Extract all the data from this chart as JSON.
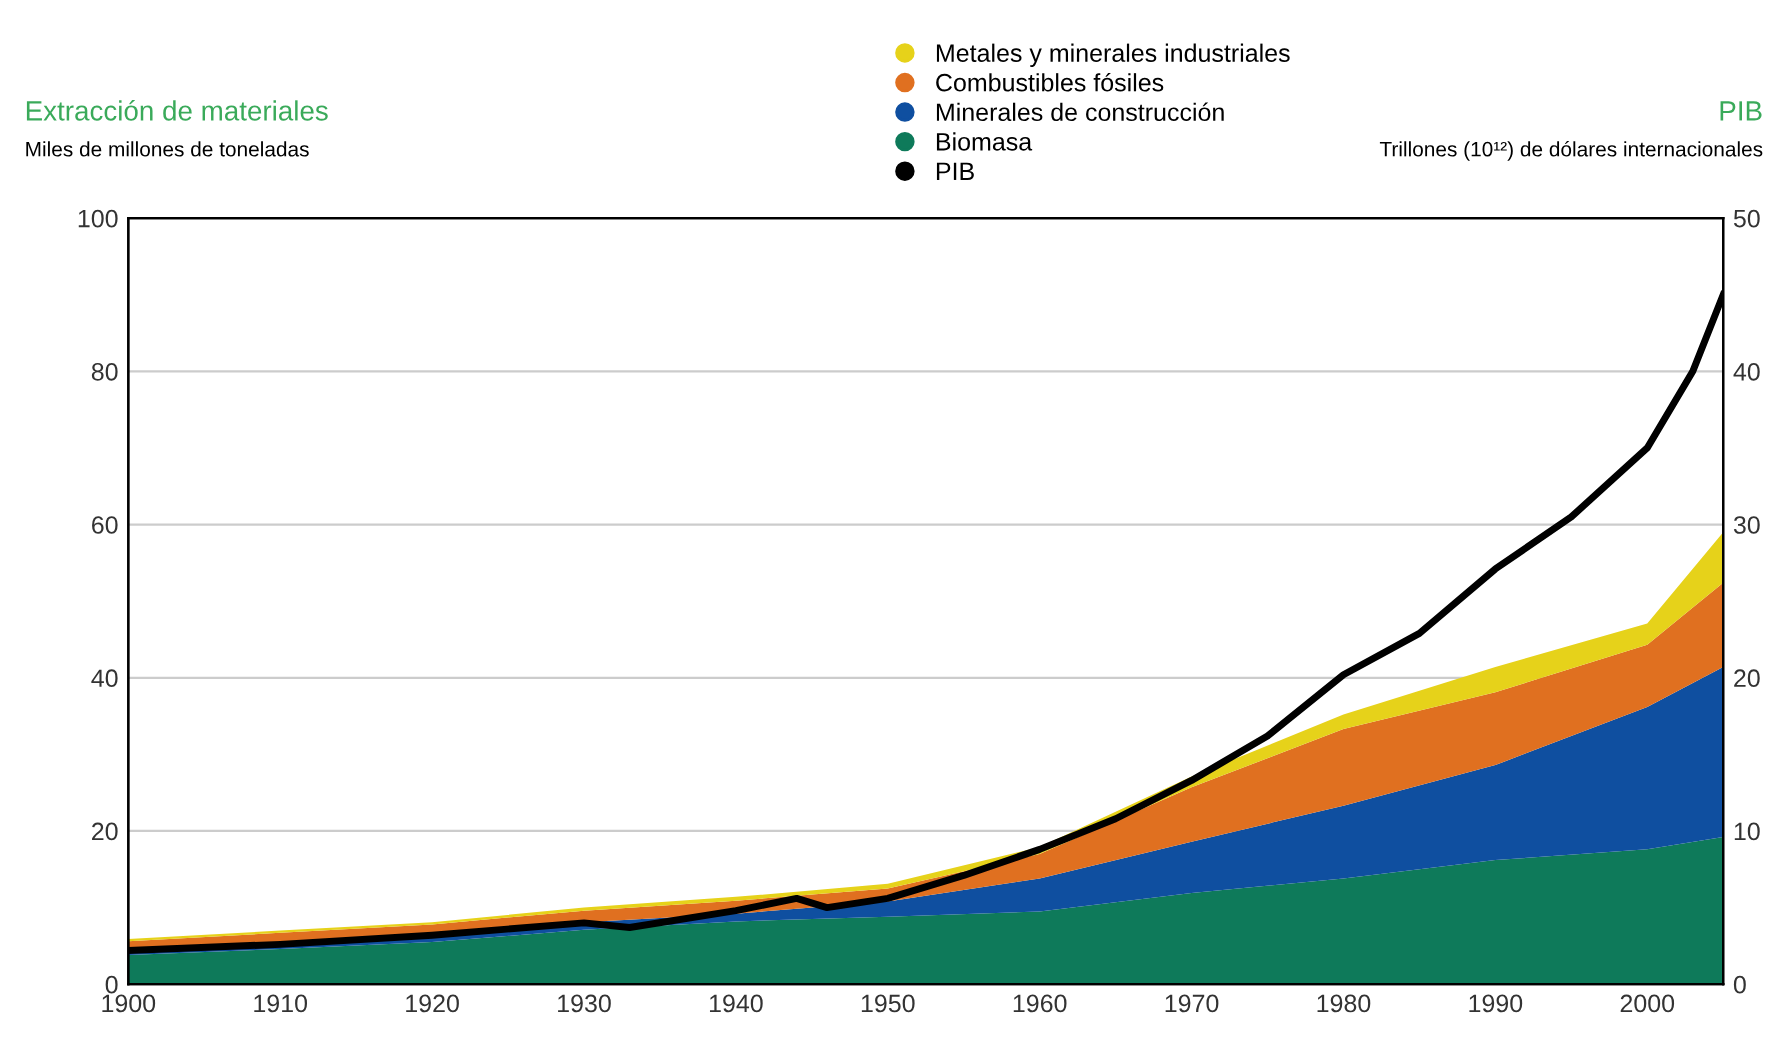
{
  "chart_data": {
    "type": "area",
    "stacked": true,
    "ylabel": "Extracción de materiales",
    "y2label": "PIB",
    "annotations": [
      "Miles de millones de toneladas",
      "Trillones (10¹²) de dólares internacionales"
    ],
    "x": [
      1900,
      1910,
      1920,
      1930,
      1940,
      1950,
      1960,
      1970,
      1980,
      1990,
      2000,
      2005
    ],
    "series": [
      {
        "name": "Biomasa",
        "color": "#0e7a5a",
        "values": [
          3.8,
          4.6,
          5.5,
          7.1,
          8.2,
          8.8,
          9.5,
          11.9,
          13.8,
          16.2,
          17.6,
          19.2
        ]
      },
      {
        "name": "Minerales de construcción",
        "color": "#0f4fa0",
        "values": [
          0.8,
          0.9,
          1.0,
          1.0,
          1.0,
          2.0,
          4.3,
          6.7,
          9.5,
          12.4,
          18.6,
          22.2
        ]
      },
      {
        "name": "Combustibles fósiles",
        "color": "#e07020",
        "values": [
          1.0,
          1.2,
          1.3,
          1.5,
          1.7,
          1.7,
          3.2,
          7.1,
          10.0,
          9.5,
          8.1,
          11.0
        ]
      },
      {
        "name": "Metales y minerales industriales",
        "color": "#e6d21a",
        "values": [
          0.3,
          0.3,
          0.3,
          0.4,
          0.5,
          0.6,
          0.9,
          1.4,
          1.9,
          3.3,
          2.8,
          6.6
        ]
      },
      {
        "name": "PIB",
        "type": "line",
        "axis": "y2",
        "color": "#000000",
        "x": [
          1900,
          1910,
          1920,
          1930,
          1933,
          1940,
          1944,
          1946,
          1950,
          1955,
          1960,
          1965,
          1970,
          1975,
          1980,
          1985,
          1990,
          1995,
          2000,
          2003,
          2005
        ],
        "values": [
          2.2,
          2.6,
          3.2,
          4.0,
          3.7,
          4.8,
          5.6,
          5.0,
          5.6,
          7.1,
          8.8,
          10.8,
          13.3,
          16.2,
          20.2,
          22.9,
          27.1,
          30.5,
          35,
          40,
          45
        ]
      }
    ],
    "xlim": [
      1900,
      2005
    ],
    "xticks": [
      1900,
      1910,
      1920,
      1930,
      1940,
      1950,
      1960,
      1970,
      1980,
      1990,
      2000
    ],
    "ylim": [
      0,
      100
    ],
    "yticks": [
      0,
      20,
      40,
      60,
      80,
      100
    ],
    "y2lim": [
      0,
      50
    ],
    "y2ticks": [
      0,
      10,
      20,
      30,
      40,
      50
    ],
    "grid": "y",
    "legend": "top",
    "line_style": "solid"
  }
}
